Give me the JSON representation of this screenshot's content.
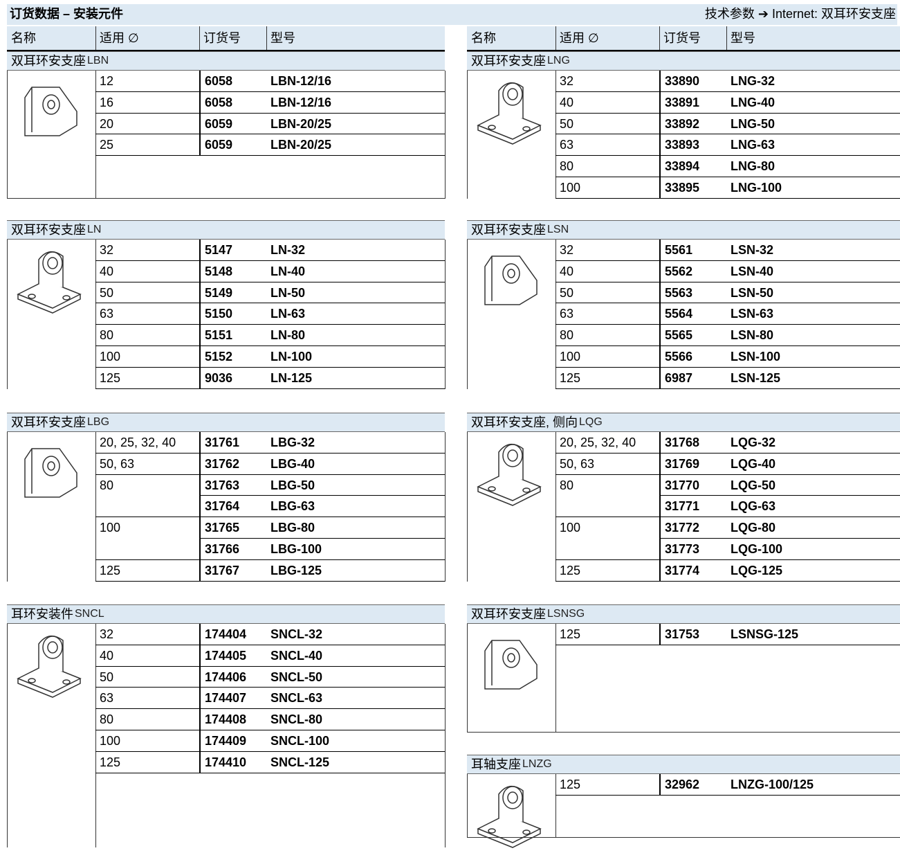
{
  "header": {
    "title": "订货数据 – 安装元件",
    "link": "技术参数 ➔ Internet: 双耳环安支座"
  },
  "columns": [
    "名称",
    "适用 ∅",
    "订货号",
    "型号"
  ],
  "left": [
    {
      "name": "双耳环安支座",
      "code": "LBN",
      "groups": [
        {
          "diameter": "12",
          "items": [
            {
              "order": "6058",
              "type": "LBN-12/16"
            }
          ]
        },
        {
          "diameter": "16",
          "items": [
            {
              "order": "6058",
              "type": "LBN-12/16"
            }
          ]
        },
        {
          "diameter": "20",
          "items": [
            {
              "order": "6059",
              "type": "LBN-20/25"
            }
          ]
        },
        {
          "diameter": "25",
          "items": [
            {
              "order": "6059",
              "type": "LBN-20/25"
            }
          ]
        }
      ]
    },
    {
      "name": "双耳环安支座",
      "code": "LN",
      "groups": [
        {
          "diameter": "32",
          "items": [
            {
              "order": "5147",
              "type": "LN-32"
            }
          ]
        },
        {
          "diameter": "40",
          "items": [
            {
              "order": "5148",
              "type": "LN-40"
            }
          ]
        },
        {
          "diameter": "50",
          "items": [
            {
              "order": "5149",
              "type": "LN-50"
            }
          ]
        },
        {
          "diameter": "63",
          "items": [
            {
              "order": "5150",
              "type": "LN-63"
            }
          ]
        },
        {
          "diameter": "80",
          "items": [
            {
              "order": "5151",
              "type": "LN-80"
            }
          ]
        },
        {
          "diameter": "100",
          "items": [
            {
              "order": "5152",
              "type": "LN-100"
            }
          ]
        },
        {
          "diameter": "125",
          "items": [
            {
              "order": "9036",
              "type": "LN-125"
            }
          ]
        }
      ]
    },
    {
      "name": "双耳环安支座",
      "code": "LBG",
      "groups": [
        {
          "diameter": "20, 25, 32, 40",
          "items": [
            {
              "order": "31761",
              "type": "LBG-32"
            }
          ]
        },
        {
          "diameter": "50, 63",
          "items": [
            {
              "order": "31762",
              "type": "LBG-40"
            }
          ]
        },
        {
          "diameter": "80",
          "items": [
            {
              "order": "31763",
              "type": "LBG-50"
            },
            {
              "order": "31764",
              "type": "LBG-63"
            }
          ]
        },
        {
          "diameter": "100",
          "items": [
            {
              "order": "31765",
              "type": "LBG-80"
            },
            {
              "order": "31766",
              "type": "LBG-100"
            }
          ]
        },
        {
          "diameter": "125",
          "items": [
            {
              "order": "31767",
              "type": "LBG-125"
            }
          ]
        }
      ]
    },
    {
      "name": "耳环安装件",
      "code": "SNCL",
      "groups": [
        {
          "diameter": "32",
          "items": [
            {
              "order": "174404",
              "type": "SNCL-32"
            }
          ]
        },
        {
          "diameter": "40",
          "items": [
            {
              "order": "174405",
              "type": "SNCL-40"
            }
          ]
        },
        {
          "diameter": "50",
          "items": [
            {
              "order": "174406",
              "type": "SNCL-50"
            }
          ]
        },
        {
          "diameter": "63",
          "items": [
            {
              "order": "174407",
              "type": "SNCL-63"
            }
          ]
        },
        {
          "diameter": "80",
          "items": [
            {
              "order": "174408",
              "type": "SNCL-80"
            }
          ]
        },
        {
          "diameter": "100",
          "items": [
            {
              "order": "174409",
              "type": "SNCL-100"
            }
          ]
        },
        {
          "diameter": "125",
          "items": [
            {
              "order": "174410",
              "type": "SNCL-125"
            }
          ]
        }
      ]
    }
  ],
  "right": [
    {
      "name": "双耳环安支座",
      "code": "LNG",
      "groups": [
        {
          "diameter": "32",
          "items": [
            {
              "order": "33890",
              "type": "LNG-32"
            }
          ]
        },
        {
          "diameter": "40",
          "items": [
            {
              "order": "33891",
              "type": "LNG-40"
            }
          ]
        },
        {
          "diameter": "50",
          "items": [
            {
              "order": "33892",
              "type": "LNG-50"
            }
          ]
        },
        {
          "diameter": "63",
          "items": [
            {
              "order": "33893",
              "type": "LNG-63"
            }
          ]
        },
        {
          "diameter": "80",
          "items": [
            {
              "order": "33894",
              "type": "LNG-80"
            }
          ]
        },
        {
          "diameter": "100",
          "items": [
            {
              "order": "33895",
              "type": "LNG-100"
            }
          ]
        }
      ]
    },
    {
      "name": "双耳环安支座",
      "code": "LSN",
      "groups": [
        {
          "diameter": "32",
          "items": [
            {
              "order": "5561",
              "type": "LSN-32"
            }
          ]
        },
        {
          "diameter": "40",
          "items": [
            {
              "order": "5562",
              "type": "LSN-40"
            }
          ]
        },
        {
          "diameter": "50",
          "items": [
            {
              "order": "5563",
              "type": "LSN-50"
            }
          ]
        },
        {
          "diameter": "63",
          "items": [
            {
              "order": "5564",
              "type": "LSN-63"
            }
          ]
        },
        {
          "diameter": "80",
          "items": [
            {
              "order": "5565",
              "type": "LSN-80"
            }
          ]
        },
        {
          "diameter": "100",
          "items": [
            {
              "order": "5566",
              "type": "LSN-100"
            }
          ]
        },
        {
          "diameter": "125",
          "items": [
            {
              "order": "6987",
              "type": "LSN-125"
            }
          ]
        }
      ]
    },
    {
      "name": "双耳环安支座, 侧向",
      "code": "LQG",
      "groups": [
        {
          "diameter": "20, 25, 32, 40",
          "items": [
            {
              "order": "31768",
              "type": "LQG-32"
            }
          ]
        },
        {
          "diameter": "50, 63",
          "items": [
            {
              "order": "31769",
              "type": "LQG-40"
            }
          ]
        },
        {
          "diameter": "80",
          "items": [
            {
              "order": "31770",
              "type": "LQG-50"
            },
            {
              "order": "31771",
              "type": "LQG-63"
            }
          ]
        },
        {
          "diameter": "100",
          "items": [
            {
              "order": "31772",
              "type": "LQG-80"
            },
            {
              "order": "31773",
              "type": "LQG-100"
            }
          ]
        },
        {
          "diameter": "125",
          "items": [
            {
              "order": "31774",
              "type": "LQG-125"
            }
          ]
        }
      ]
    },
    {
      "name": "双耳环安支座",
      "code": "LSNSG",
      "groups": [
        {
          "diameter": "125",
          "items": [
            {
              "order": "31753",
              "type": "LSNSG-125"
            }
          ]
        }
      ]
    },
    {
      "name": "耳轴支座",
      "code": "LNZG",
      "groups": [
        {
          "diameter": "125",
          "items": [
            {
              "order": "32962",
              "type": "LNZG-100/125"
            }
          ]
        }
      ]
    }
  ]
}
